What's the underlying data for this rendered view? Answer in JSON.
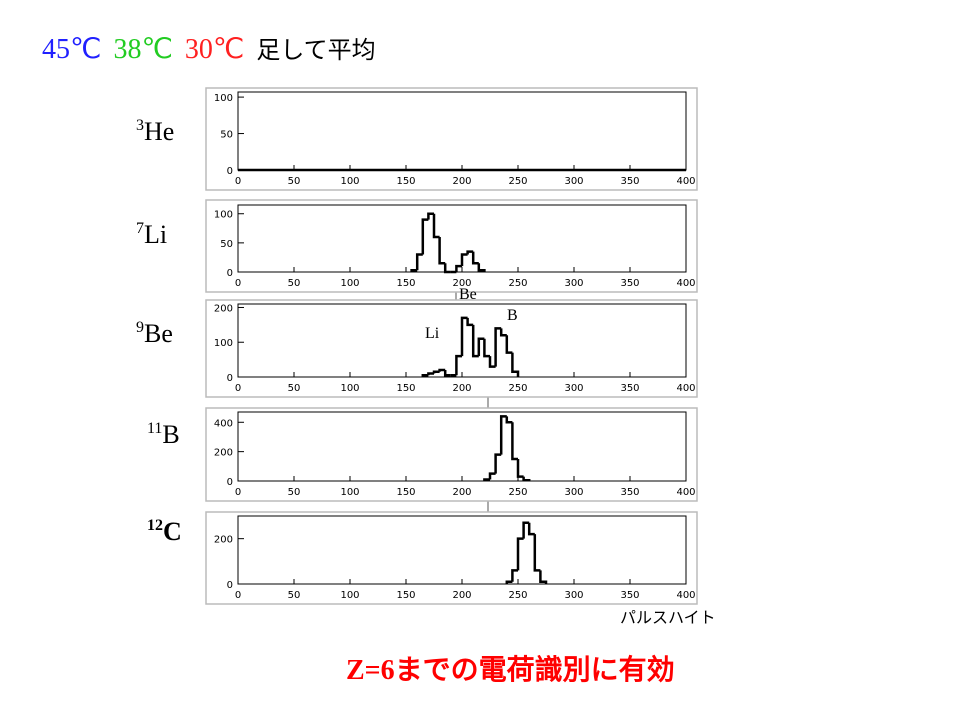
{
  "header": {
    "title": [
      {
        "text": "45℃",
        "color": "#2020ff"
      },
      {
        "text": "38℃",
        "color": "#22cc22"
      },
      {
        "text": "30℃",
        "color": "#ff2020"
      },
      {
        "text": "足して平均",
        "color": "#000000"
      }
    ]
  },
  "chart_data": [
    {
      "type": "histogram",
      "nucleus": {
        "mass": "3",
        "element": "He"
      },
      "bins": [
        0,
        400
      ],
      "counts": [
        0
      ],
      "xlim": [
        0,
        400
      ],
      "ylim": [
        0,
        107
      ],
      "xticks": [
        0,
        50,
        100,
        150,
        200,
        250,
        300,
        350,
        400
      ],
      "yticks": [
        0,
        50,
        100
      ],
      "color": "#000000"
    },
    {
      "type": "histogram",
      "nucleus": {
        "mass": "7",
        "element": "Li"
      },
      "bins": [
        155,
        160,
        165,
        170,
        175,
        180,
        185,
        190,
        195,
        200,
        205,
        210,
        215,
        220
      ],
      "counts": [
        3,
        30,
        90,
        100,
        60,
        15,
        0,
        0,
        10,
        30,
        35,
        15,
        3
      ],
      "xlim": [
        0,
        400
      ],
      "ylim": [
        0,
        115
      ],
      "xticks": [
        0,
        50,
        100,
        150,
        200,
        250,
        300,
        350,
        400
      ],
      "yticks": [
        0,
        50,
        100
      ],
      "color": "#000000"
    },
    {
      "type": "histogram",
      "nucleus": {
        "mass": "9",
        "element": "Be"
      },
      "bins": [
        165,
        170,
        175,
        180,
        185,
        190,
        195,
        200,
        205,
        210,
        215,
        220,
        225,
        230,
        235,
        240,
        245,
        250
      ],
      "counts": [
        5,
        10,
        15,
        20,
        5,
        5,
        60,
        170,
        150,
        60,
        110,
        60,
        30,
        140,
        120,
        70,
        15
      ],
      "xlim": [
        0,
        400
      ],
      "ylim": [
        0,
        210
      ],
      "xticks": [
        0,
        50,
        100,
        150,
        200,
        250,
        300,
        350,
        400
      ],
      "yticks": [
        0,
        100,
        200
      ],
      "color": "#000000"
    },
    {
      "type": "histogram",
      "nucleus": {
        "mass": "11",
        "element": "B"
      },
      "bins": [
        220,
        225,
        230,
        235,
        240,
        245,
        250,
        255,
        260
      ],
      "counts": [
        10,
        50,
        180,
        440,
        400,
        150,
        30,
        5
      ],
      "xlim": [
        0,
        400
      ],
      "ylim": [
        0,
        470
      ],
      "xticks": [
        0,
        50,
        100,
        150,
        200,
        250,
        300,
        350,
        400
      ],
      "yticks": [
        0,
        200,
        400
      ],
      "color": "#000000"
    },
    {
      "type": "histogram",
      "nucleus": {
        "mass": "12",
        "element": "C"
      },
      "bins": [
        240,
        245,
        250,
        255,
        260,
        265,
        270,
        275
      ],
      "counts": [
        10,
        60,
        200,
        270,
        220,
        60,
        10
      ],
      "xlim": [
        0,
        400
      ],
      "ylim": [
        0,
        300
      ],
      "xticks": [
        0,
        50,
        100,
        150,
        200,
        250,
        300,
        350,
        400
      ],
      "yticks": [
        0,
        200
      ],
      "color": "#000000"
    }
  ],
  "annotations": [
    "Be",
    "Li",
    "B"
  ],
  "x_label": "パルスハイト",
  "footer": {
    "prefix": "Z=6",
    "text": "までの電荷識別に有効",
    "color": "#ff0000"
  }
}
